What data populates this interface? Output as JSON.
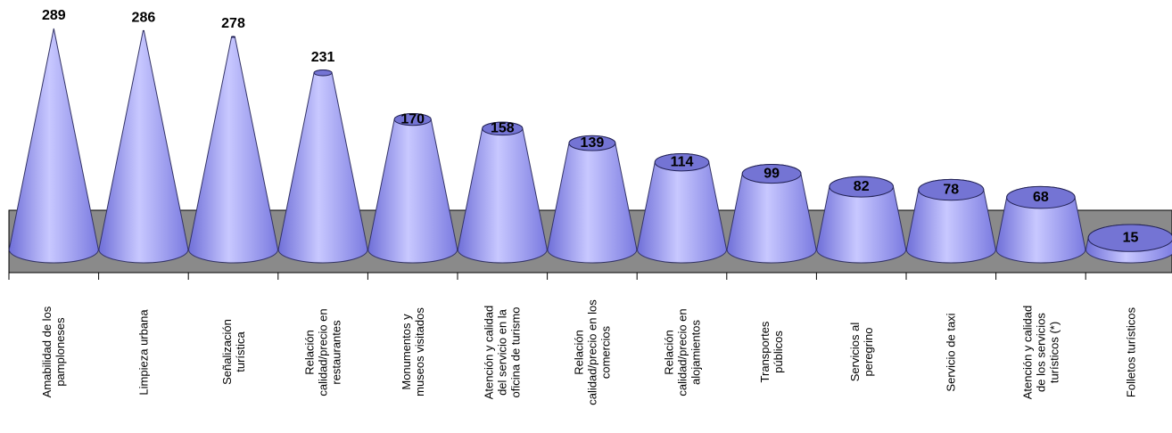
{
  "chart_data": {
    "type": "cone",
    "categories": [
      "Amabilidad de los\npamploneses",
      "Limpieza urbana",
      "Señalización\nturística",
      "Relación\ncalidad/precio en\nrestaurantes",
      "Monumentos y\nmuseos visitados",
      "Atención y calidad\ndel servicio en la\noficina de turismo",
      "Relación\ncalidad/precio en los\ncomercios",
      "Relación\ncalidad/precio en\nalojamientos",
      "Transportes\npúblicos",
      "Servicios al\nperegrino",
      "Servicio de taxi",
      "Atención y calidad\nde los servicios\nturísticos (*)",
      "Folletos turísticos"
    ],
    "values": [
      289,
      286,
      278,
      231,
      170,
      158,
      139,
      114,
      99,
      82,
      78,
      68,
      15
    ],
    "color": "#9999ff"
  }
}
